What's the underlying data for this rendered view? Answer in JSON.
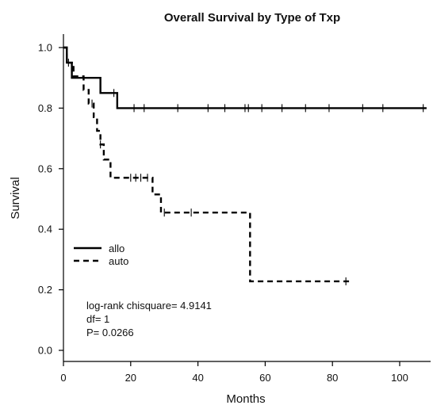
{
  "chart_data": {
    "type": "line",
    "title": "Overall Survival by Type of Txp",
    "xlabel": "Months",
    "ylabel": "Survival",
    "xlim": [
      0,
      110
    ],
    "ylim": [
      0,
      1.05
    ],
    "x_ticks": [
      0,
      20,
      40,
      60,
      80,
      100
    ],
    "y_ticks": [
      0.0,
      0.2,
      0.4,
      0.6,
      0.8,
      1.0
    ],
    "x_tick_labels": [
      "0",
      "20",
      "40",
      "60",
      "80",
      "100"
    ],
    "y_tick_labels": [
      "0.0",
      "0.2",
      "0.4",
      "0.6",
      "0.8",
      "1.0"
    ],
    "grid": false,
    "legend_position": "middle-left",
    "series": [
      {
        "name": "allo",
        "line_style": "solid",
        "steps": [
          [
            0,
            1.0
          ],
          [
            1,
            0.95
          ],
          [
            2.5,
            0.9
          ],
          [
            11,
            0.85
          ],
          [
            16,
            0.8
          ],
          [
            108,
            0.8
          ]
        ],
        "censored": [
          1.5,
          15,
          21,
          24,
          34,
          43,
          48,
          54,
          55,
          59,
          65,
          72,
          79,
          89,
          95,
          107
        ]
      },
      {
        "name": "auto",
        "line_style": "dashed",
        "steps": [
          [
            0,
            1.0
          ],
          [
            1,
            0.95
          ],
          [
            3,
            0.905
          ],
          [
            6,
            0.86
          ],
          [
            7.5,
            0.815
          ],
          [
            9,
            0.77
          ],
          [
            10,
            0.725
          ],
          [
            11,
            0.68
          ],
          [
            12,
            0.63
          ],
          [
            14,
            0.57
          ],
          [
            26.5,
            0.515
          ],
          [
            29,
            0.455
          ],
          [
            55.5,
            0.228
          ],
          [
            85,
            0.228
          ]
        ],
        "censored": [
          8.5,
          11,
          20,
          21.5,
          23,
          25,
          30,
          38,
          84
        ]
      }
    ],
    "annotations": [
      "log-rank chisquare= 4.9141",
      "df= 1",
      "P= 0.0266"
    ]
  }
}
